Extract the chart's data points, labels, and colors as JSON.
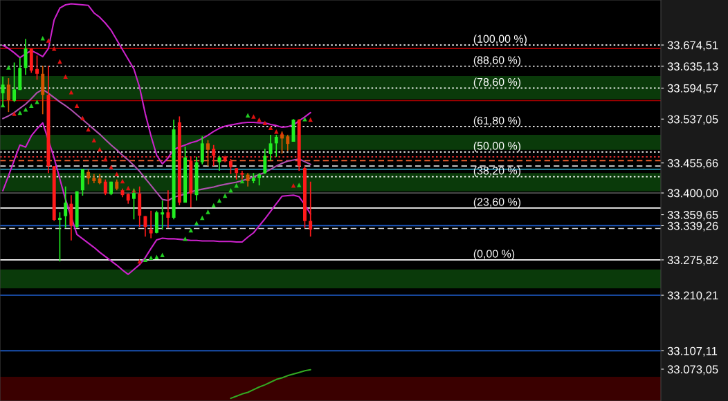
{
  "chart_data": {
    "type": "candlestick",
    "categories": [
      null,
      null,
      null,
      null,
      null,
      null,
      null,
      null,
      null,
      null,
      null,
      null,
      null,
      null,
      null,
      null,
      null,
      null,
      null,
      null,
      null,
      null,
      null,
      null,
      null,
      null,
      null,
      null,
      null,
      null,
      null,
      null,
      null,
      null,
      null,
      null,
      null,
      null,
      null,
      null,
      null,
      null,
      null,
      null,
      null,
      null,
      null,
      null,
      null,
      null,
      null,
      null,
      null,
      null,
      null,
      null,
      null,
      null,
      null,
      null,
      null,
      null,
      null,
      null,
      null,
      null,
      null,
      null,
      null,
      null,
      null,
      null,
      null,
      null,
      null,
      null,
      null,
      null,
      null,
      null,
      null,
      null,
      null,
      null,
      null,
      null,
      null,
      null,
      null,
      null,
      null,
      null,
      null,
      null,
      null,
      null,
      null,
      null,
      null,
      null,
      null,
      null,
      null,
      null,
      null,
      null,
      null,
      null,
      null,
      null,
      null,
      null,
      null,
      null,
      null,
      null
    ],
    "ohlc": [
      [
        33585,
        33616,
        33562,
        33601
      ],
      [
        33601,
        33613,
        33550,
        33572
      ],
      [
        33571,
        33642,
        33569,
        33592
      ],
      [
        33591,
        33651,
        33591,
        33632
      ],
      [
        33632,
        33686,
        33619,
        33668
      ],
      [
        33668,
        33668,
        33623,
        33627
      ],
      [
        33630,
        33655,
        33610,
        33621
      ],
      [
        33621,
        33636,
        33546,
        33582
      ],
      [
        33582,
        33636,
        33437,
        33450
      ],
      [
        33450,
        33450,
        33348,
        33350
      ],
      [
        33350,
        33364,
        33273,
        33354
      ],
      [
        33357,
        33412,
        33335,
        33382
      ],
      [
        33380,
        33396,
        33312,
        33339
      ],
      [
        33337,
        33403,
        33335,
        33403
      ],
      [
        33405,
        33445,
        33395,
        33444
      ],
      [
        33439,
        33444,
        33416,
        33427
      ],
      [
        33428,
        33435,
        33418,
        33422
      ],
      [
        33427,
        33435,
        33416,
        33418
      ],
      [
        33421,
        33425,
        33396,
        33399
      ],
      [
        33398,
        33421,
        33396,
        33421
      ],
      [
        33421,
        33425,
        33405,
        33408
      ],
      [
        33405,
        33408,
        33392,
        33396
      ],
      [
        33398,
        33399,
        33380,
        33386
      ],
      [
        33389,
        33408,
        33351,
        33400
      ],
      [
        33399,
        33412,
        33337,
        33358
      ],
      [
        33357,
        33357,
        33319,
        33337
      ],
      [
        33332,
        33367,
        33316,
        33325
      ],
      [
        33326,
        33367,
        33325,
        33364
      ],
      [
        33360,
        33386,
        33332,
        33364
      ],
      [
        33364,
        33405,
        33335,
        33354
      ],
      [
        33354,
        33536,
        33351,
        33518
      ],
      [
        33531,
        33542,
        33377,
        33382
      ],
      [
        33382,
        33486,
        33382,
        33466
      ],
      [
        33460,
        33467,
        33373,
        33399
      ],
      [
        33396,
        33467,
        33386,
        33457
      ],
      [
        33457,
        33505,
        33453,
        33492
      ],
      [
        33492,
        33498,
        33450,
        33480
      ],
      [
        33482,
        33489,
        33450,
        33469
      ],
      [
        33457,
        33469,
        33441,
        33466
      ],
      [
        33467,
        33469,
        33457,
        33460
      ],
      [
        33459,
        33463,
        33435,
        33448
      ],
      [
        33446,
        33446,
        33425,
        33437
      ],
      [
        33437,
        33441,
        33425,
        33434
      ],
      [
        33434,
        33437,
        33412,
        33422
      ],
      [
        33422,
        33437,
        33418,
        33428
      ],
      [
        33428,
        33437,
        33414,
        33434
      ],
      [
        33437,
        33482,
        33435,
        33469
      ],
      [
        33472,
        33508,
        33460,
        33492
      ],
      [
        33492,
        33508,
        33467,
        33504
      ],
      [
        33508,
        33514,
        33473,
        33501
      ],
      [
        33505,
        33508,
        33478,
        33491
      ],
      [
        33495,
        33537,
        33495,
        33536
      ],
      [
        33536,
        33537,
        33441,
        33450
      ],
      [
        33446,
        33450,
        33335,
        33348
      ],
      [
        33348,
        33421,
        33319,
        33332
      ],
      null,
      null,
      null,
      null,
      null,
      null,
      null,
      null,
      null,
      null,
      null,
      null,
      null,
      null,
      null,
      null,
      null,
      null,
      null,
      null,
      null,
      null,
      null,
      null,
      null,
      null,
      null,
      null,
      null,
      null,
      null,
      null,
      null,
      null,
      null,
      null,
      null,
      null,
      null,
      null,
      null,
      null,
      null,
      null,
      null,
      null,
      null,
      null,
      null,
      null,
      null,
      null,
      null,
      null,
      null,
      null,
      null,
      null,
      null,
      null,
      null
    ],
    "colors": [
      "#22ee22",
      "#d35400",
      "#22ee22",
      "#22ee22",
      "#22ee22",
      "#ff1a1a",
      "#ff1a1a",
      "#d35400",
      "#ff1a1a",
      "#ff1a1a",
      "#22ee22",
      "#22ee22",
      "#ff1a1a",
      "#22ee22",
      "#22ee22",
      "#d35400",
      "#d35400",
      "#d35400",
      "#ff1a1a",
      "#22ee22",
      "#d35400",
      "#ff1a1a",
      "#ff1a1a",
      "#22ee22",
      "#ff1a1a",
      "#ff1a1a",
      "#ff1a1a",
      "#22ee22",
      "#22ee22",
      "#ff1a1a",
      "#22ee22",
      "#ff1a1a",
      "#22ee22",
      "#ff1a1a",
      "#22ee22",
      "#22ee22",
      "#d35400",
      "#ff1a1a",
      "#22ee22",
      "#ff1a1a",
      "#ff1a1a",
      "#ff1a1a",
      "#ff1a1a",
      "#d35400",
      "#22ee22",
      "#22ee22",
      "#22ee22",
      "#22ee22",
      "#22ee22",
      "#d35400",
      "#d35400",
      "#22ee22",
      "#ff1a1a",
      "#ff1a1a",
      "#ff1a1a",
      null,
      null,
      null,
      null,
      null,
      null,
      null,
      null,
      null,
      null,
      null,
      null,
      null,
      null,
      null,
      null,
      null,
      null,
      null,
      null,
      null,
      null,
      null,
      null,
      null,
      null,
      null,
      null,
      null,
      null,
      null,
      null,
      null,
      null,
      null,
      null,
      null,
      null,
      null,
      null,
      null,
      null,
      null,
      null,
      null,
      null,
      null,
      null,
      null,
      null,
      null,
      null,
      null,
      null,
      null,
      null,
      null,
      null,
      null,
      null,
      null
    ],
    "series": [
      {
        "type": "line",
        "color": "#cc22cc",
        "values": [
          33674,
          33668,
          33660,
          33651,
          33658,
          33664,
          33659,
          33653,
          33668,
          33721,
          33743,
          33749,
          33751,
          33750,
          33749,
          33748,
          33734,
          33726,
          33715,
          33702,
          33684,
          33666,
          33648,
          33630,
          33596,
          33547,
          33506,
          33470,
          33454,
          33465,
          33481,
          33485,
          33489,
          33493,
          33496,
          33501,
          33507,
          33514,
          33520,
          33524,
          33526,
          33528,
          33530,
          33531,
          33531,
          33530,
          33530,
          33527,
          33525,
          33522,
          33523,
          33526,
          33534,
          33541,
          33549,
          null,
          null,
          null,
          null,
          null,
          null,
          null,
          null,
          null,
          null,
          null,
          null,
          null,
          null,
          null,
          null,
          null,
          null,
          null,
          null,
          null,
          null,
          null,
          null,
          null,
          null,
          null,
          null,
          null,
          null,
          null,
          null,
          null,
          null,
          null,
          null,
          null,
          null,
          null,
          null,
          null,
          null,
          null,
          null,
          null,
          null,
          null,
          null,
          null,
          null,
          null,
          null,
          null,
          null,
          null,
          null,
          null,
          null,
          null,
          null,
          null
        ]
      },
      {
        "type": "line",
        "color": "#b050b0",
        "values": [
          33538,
          33543,
          33549,
          33557,
          33565,
          33575,
          33586,
          33592,
          33585,
          33577,
          33569,
          33562,
          33554,
          33545,
          33536,
          33527,
          33518,
          33509,
          33499,
          33489,
          33480,
          33470,
          33461,
          33451,
          33440,
          33427,
          33414,
          33401,
          33388,
          33386,
          33392,
          33395,
          33398,
          33402,
          33405,
          33407,
          33409,
          33411,
          33414,
          33416,
          33418,
          33420,
          33423,
          33426,
          33430,
          33434,
          33438,
          33444,
          33450,
          33455,
          33459,
          33461,
          33463,
          33458,
          33453,
          null,
          null,
          null,
          null,
          null,
          null,
          null,
          null,
          null,
          null,
          null,
          null,
          null,
          null,
          null,
          null,
          null,
          null,
          null,
          null,
          null,
          null,
          null,
          null,
          null,
          null,
          null,
          null,
          null,
          null,
          null,
          null,
          null,
          null,
          null,
          null,
          null,
          null,
          null,
          null,
          null,
          null,
          null,
          null,
          null,
          null,
          null,
          null,
          null,
          null,
          null,
          null,
          null,
          null,
          null,
          null,
          null,
          null,
          null,
          null,
          null
        ]
      },
      {
        "type": "line",
        "color": "#cc22cc",
        "values": [
          33404,
          33432,
          33461,
          33489,
          33485,
          33506,
          33519,
          33530,
          null,
          33465,
          33426,
          33388,
          null,
          33323,
          33315,
          33307,
          33299,
          33290,
          33282,
          33274,
          33266,
          33257,
          33249,
          33258,
          33267,
          33280,
          33297,
          33313,
          33316,
          33315,
          33315,
          33314,
          33313,
          33312,
          33312,
          33311,
          33311,
          33311,
          33310,
          33310,
          33310,
          33309,
          33309,
          33318,
          33326,
          33339,
          33352,
          33366,
          33380,
          33394,
          33395,
          33396,
          33393,
          33378,
          33361,
          null,
          null,
          null,
          null,
          null,
          null,
          null,
          null,
          null,
          null,
          null,
          null,
          null,
          null,
          null,
          null,
          null,
          null,
          null,
          null,
          null,
          null,
          null,
          null,
          null,
          null,
          null,
          null,
          null,
          null,
          null,
          null,
          null,
          null,
          null,
          null,
          null,
          null,
          null,
          null,
          null,
          null,
          null,
          null,
          null,
          null,
          null,
          null,
          null,
          null,
          null,
          null,
          null,
          null,
          null,
          null,
          null,
          null,
          null,
          null,
          null
        ]
      },
      {
        "type": "scatter",
        "color": "#22cc22",
        "marker": "triangle",
        "values": [
          33563,
          33633,
          null,
          33549,
          33555,
          33562,
          33569,
          33687,
          null,
          null,
          null,
          null,
          null,
          null,
          null,
          null,
          null,
          null,
          null,
          null,
          null,
          null,
          null,
          null,
          null,
          33276,
          33280,
          33281,
          33285,
          null,
          null,
          null,
          33315,
          33331,
          33344,
          33354,
          33365,
          33377,
          33386,
          33395,
          33405,
          33414,
          33422,
          33544,
          null,
          null,
          null,
          null,
          null,
          null,
          null,
          null,
          33415,
          33537,
          null,
          null,
          null,
          null,
          null,
          null,
          null,
          null,
          null,
          null,
          null,
          null,
          null,
          null,
          null,
          null,
          null,
          null,
          null,
          null,
          null,
          null,
          null,
          null,
          null,
          null,
          null,
          null,
          null,
          null,
          null,
          null,
          null,
          null,
          null,
          null,
          null,
          null,
          null,
          null,
          null,
          null,
          null,
          null,
          null,
          null,
          null,
          null,
          null,
          null,
          null,
          null,
          null,
          null,
          null,
          null,
          null,
          null,
          null,
          null,
          null,
          null
        ]
      },
      {
        "type": "scatter",
        "color": "#dd1111",
        "marker": "triangle",
        "values": [
          null,
          null,
          33547,
          null,
          null,
          null,
          null,
          null,
          33683,
          33668,
          33644,
          33616,
          33587,
          33562,
          33539,
          33518,
          33498,
          33481,
          33463,
          33448,
          33435,
          33422,
          33409,
          33405,
          33273,
          null,
          null,
          null,
          null,
          null,
          null,
          null,
          null,
          null,
          null,
          null,
          null,
          null,
          null,
          null,
          null,
          null,
          null,
          null,
          33542,
          33536,
          33530,
          33521,
          33514,
          33510,
          null,
          33414,
          null,
          null,
          33536,
          null,
          null,
          null,
          null,
          null,
          null,
          null,
          null,
          null,
          null,
          null,
          null,
          null,
          null,
          null,
          null,
          null,
          null,
          null,
          null,
          null,
          null,
          null,
          null,
          null,
          null,
          null,
          null,
          null,
          null,
          null,
          null,
          null,
          null,
          null,
          null,
          null,
          null,
          null,
          null,
          null,
          null,
          null,
          null,
          null,
          null,
          null,
          null,
          null,
          null,
          null,
          null,
          null,
          null,
          null,
          null,
          null,
          null,
          null,
          null,
          null
        ]
      },
      {
        "type": "line",
        "color": "#33aa22",
        "values": [
          null,
          null,
          null,
          null,
          null,
          null,
          null,
          null,
          null,
          null,
          null,
          null,
          null,
          null,
          null,
          null,
          null,
          null,
          null,
          null,
          null,
          null,
          null,
          null,
          null,
          null,
          null,
          null,
          null,
          null,
          null,
          null,
          null,
          null,
          null,
          null,
          null,
          null,
          null,
          null,
          33019,
          33023,
          33027,
          33030,
          33035,
          33040,
          33044,
          33049,
          33054,
          33057,
          33061,
          33064,
          33067,
          33070,
          33072,
          null,
          null,
          null,
          null,
          null,
          null,
          null,
          null,
          null,
          null,
          null,
          null,
          null,
          null,
          null,
          null,
          null,
          null,
          null,
          null,
          null,
          null,
          null,
          null,
          null,
          null,
          null,
          null,
          null,
          null,
          null,
          null,
          null,
          null,
          null,
          null,
          null,
          null,
          null,
          null,
          null,
          null,
          null,
          null,
          null,
          null,
          null,
          null,
          null,
          null,
          null,
          null,
          null,
          null,
          null,
          null,
          null,
          null,
          null,
          null,
          null
        ]
      }
    ],
    "ylim": [
      33014,
      33758
    ],
    "yticks": [
      {
        "value": 33674.51,
        "label": "33.674,51"
      },
      {
        "value": 33635.13,
        "label": "33.635,13"
      },
      {
        "value": 33594.57,
        "label": "33.594,57"
      },
      {
        "value": 33537.05,
        "label": "33.537,05"
      },
      {
        "value": 33455.66,
        "label": "33.455,66"
      },
      {
        "value": 33400.0,
        "label": "33.400,00"
      },
      {
        "value": 33359.65,
        "label": "33.359,65"
      },
      {
        "value": 33339.26,
        "label": "33.339,26"
      },
      {
        "value": 33275.82,
        "label": "33.275,82"
      },
      {
        "value": 33210.21,
        "label": "33.210,21"
      },
      {
        "value": 33107.11,
        "label": "33.107,11"
      },
      {
        "value": 33073.05,
        "label": "33.073,05"
      }
    ],
    "tick_labels": "y",
    "annotations": [
      {
        "text": "(100,00 %)",
        "y": 33674.51
      },
      {
        "text": "(88,60 %)",
        "y": 33635.13
      },
      {
        "text": "(78,60 %)",
        "y": 33594.57
      },
      {
        "text": "(61,80 %)",
        "y": 33523
      },
      {
        "text": "(50,00 %)",
        "y": 33476
      },
      {
        "text": "(38,20 %)",
        "y": 33430
      },
      {
        "text": "(23,60 %)",
        "y": 33372
      },
      {
        "text": "(0,00 %)",
        "y": 33275.82
      }
    ],
    "bands": [
      {
        "axis": "y",
        "from": 33574,
        "to": 33617,
        "color": "#0a3a0a"
      },
      {
        "axis": "y",
        "from": 33480,
        "to": 33508,
        "color": "#0a3a0a"
      },
      {
        "axis": "y",
        "from": 33403,
        "to": 33437,
        "color": "#0a3a0a"
      },
      {
        "axis": "y",
        "from": 33223,
        "to": 33258,
        "color": "#0a3a0a"
      },
      {
        "axis": "y",
        "from": 33014,
        "to": 33059,
        "color": "#3a0000"
      }
    ],
    "ref_lines": [
      {
        "axis": "y",
        "value": 33674.51,
        "color": "#ffffff",
        "line_style": "dotted"
      },
      {
        "axis": "y",
        "value": 33635.13,
        "color": "#ffffff",
        "line_style": "dotted"
      },
      {
        "axis": "y",
        "value": 33594.57,
        "color": "#ffffff",
        "line_style": "dotted"
      },
      {
        "axis": "y",
        "value": 33523,
        "color": "#ffffff",
        "line_style": "dotted"
      },
      {
        "axis": "y",
        "value": 33476,
        "color": "#ffffff",
        "line_style": "dotted"
      },
      {
        "axis": "y",
        "value": 33430,
        "color": "#ffffff",
        "line_style": "dotted"
      },
      {
        "axis": "y",
        "value": 33372,
        "color": "#ffffff",
        "line_style": "solid"
      },
      {
        "axis": "y",
        "value": 33275.82,
        "color": "#ffffff",
        "line_style": "solid"
      },
      {
        "axis": "y",
        "value": 33668,
        "color": "#aa0000",
        "line_style": "solid"
      },
      {
        "axis": "y",
        "value": 33571.41,
        "color": "#aa0000",
        "line_style": "solid"
      },
      {
        "axis": "y",
        "value": 33467,
        "color": "#ff3333",
        "line_style": "dotted"
      },
      {
        "axis": "y",
        "value": 33460,
        "color": "#ff6633",
        "line_style": "dashed"
      },
      {
        "axis": "y",
        "value": 33450,
        "color": "#dddddd",
        "line_style": "dashed"
      },
      {
        "axis": "y",
        "value": 33444,
        "color": "#33bbdd",
        "line_style": "solid"
      },
      {
        "axis": "y",
        "value": 33400.0,
        "color": "#555555",
        "line_style": "solid"
      },
      {
        "axis": "y",
        "value": 33339.26,
        "color": "#1f5fd0",
        "line_style": "solid"
      },
      {
        "axis": "y",
        "value": 33334,
        "color": "#cccccc",
        "line_style": "dashed"
      },
      {
        "axis": "y",
        "value": 33210.21,
        "color": "#1f5fd0",
        "line_style": "solid"
      },
      {
        "axis": "y",
        "value": 33107.11,
        "color": "#1f5fd0",
        "line_style": "solid"
      }
    ]
  }
}
